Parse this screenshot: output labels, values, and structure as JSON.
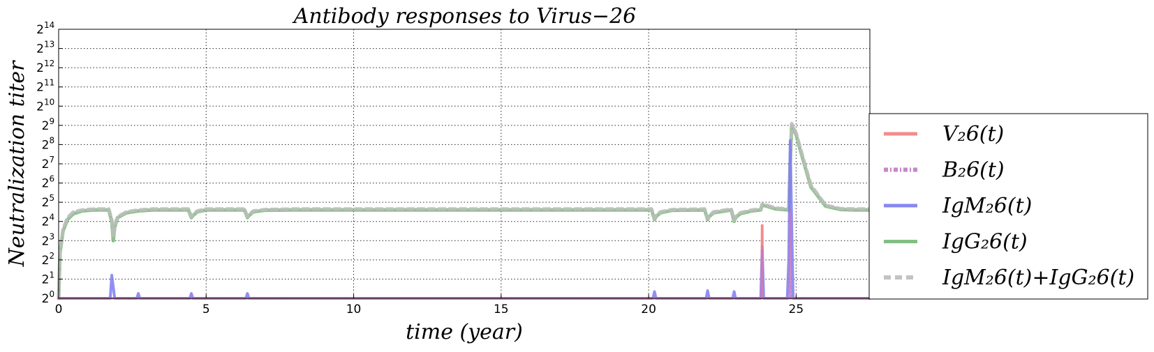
{
  "chart_data": {
    "type": "line",
    "title": "Antibody responses to Virus−26",
    "xlabel": "time (year)",
    "ylabel": "Neutralization  titer",
    "xlim": [
      0,
      27.5
    ],
    "x_ticks": [
      0,
      5,
      10,
      15,
      20,
      25
    ],
    "ylim_log2": [
      0,
      14
    ],
    "y_scale": "log2",
    "y_tick_base": "2",
    "y_ticks_exp": [
      0,
      1,
      2,
      3,
      4,
      5,
      6,
      7,
      8,
      9,
      10,
      11,
      12,
      13,
      14
    ],
    "grid": true,
    "legend_position": "right, outside plot",
    "legend": [
      {
        "label": "V₂6(t)",
        "color": "#f08080",
        "style": "solid"
      },
      {
        "label": "B₂6(t)",
        "color": "#c27bc4",
        "style": "dash-dot"
      },
      {
        "label": "IgM₂6(t)",
        "color": "#7b7bf0",
        "style": "solid"
      },
      {
        "label": "IgG₂6(t)",
        "color": "#76b876",
        "style": "solid"
      },
      {
        "label": "IgM₂6(t)+IgG₂6(t)",
        "color": "#bdbdbd",
        "style": "dashed"
      }
    ],
    "series": [
      {
        "name": "IgG₂6(t)",
        "color": "#76b876",
        "x": [
          0,
          0.05,
          0.15,
          0.3,
          0.5,
          0.8,
          1.2,
          1.7,
          1.8,
          1.85,
          1.9,
          2.0,
          2.3,
          2.7,
          3.2,
          4.4,
          4.5,
          4.55,
          4.7,
          5.0,
          6.3,
          6.4,
          6.45,
          6.6,
          7.0,
          8.0,
          20.1,
          20.2,
          20.25,
          20.4,
          20.8,
          21.9,
          22.0,
          22.05,
          22.2,
          22.6,
          22.8,
          22.9,
          22.95,
          23.1,
          23.5,
          23.8,
          23.85,
          24.0,
          24.3,
          24.75,
          24.8,
          24.85,
          25.0,
          25.2,
          25.5,
          26.0,
          26.5,
          27.0,
          27.5
        ],
        "y_log2": [
          0,
          2.4,
          3.5,
          4.1,
          4.4,
          4.55,
          4.6,
          4.6,
          4.0,
          3.0,
          3.7,
          4.2,
          4.45,
          4.55,
          4.6,
          4.6,
          4.2,
          4.3,
          4.5,
          4.6,
          4.6,
          4.2,
          4.3,
          4.5,
          4.58,
          4.6,
          4.6,
          4.1,
          4.25,
          4.45,
          4.58,
          4.6,
          4.1,
          4.25,
          4.45,
          4.55,
          4.6,
          4.0,
          4.2,
          4.4,
          4.55,
          4.6,
          4.85,
          4.8,
          4.65,
          4.6,
          7.0,
          9.0,
          8.5,
          7.4,
          5.8,
          4.8,
          4.62,
          4.6,
          4.6
        ]
      },
      {
        "name": "IgM₂6(t)+IgG₂6(t)",
        "color": "#bdbdbd",
        "x": [
          0,
          0.05,
          0.15,
          0.3,
          0.5,
          0.8,
          1.2,
          1.7,
          1.8,
          1.85,
          1.9,
          2.0,
          2.3,
          2.7,
          3.2,
          4.4,
          4.5,
          4.55,
          4.7,
          5.0,
          6.3,
          6.4,
          6.45,
          6.6,
          7.0,
          8.0,
          20.1,
          20.2,
          20.25,
          20.4,
          20.8,
          21.9,
          22.0,
          22.05,
          22.2,
          22.6,
          22.8,
          22.9,
          22.95,
          23.1,
          23.5,
          23.8,
          23.85,
          24.0,
          24.3,
          24.75,
          24.8,
          24.85,
          25.0,
          25.2,
          25.5,
          26.0,
          26.5,
          27.0,
          27.5
        ],
        "y_log2": [
          0,
          2.5,
          3.6,
          4.2,
          4.5,
          4.6,
          4.65,
          4.65,
          4.1,
          3.2,
          3.8,
          4.25,
          4.5,
          4.6,
          4.65,
          4.65,
          4.25,
          4.35,
          4.55,
          4.65,
          4.65,
          4.25,
          4.35,
          4.55,
          4.62,
          4.65,
          4.65,
          4.15,
          4.3,
          4.5,
          4.62,
          4.65,
          4.15,
          4.3,
          4.5,
          4.6,
          4.65,
          4.05,
          4.25,
          4.45,
          4.6,
          4.65,
          4.9,
          4.85,
          4.7,
          4.65,
          7.2,
          9.1,
          8.6,
          7.5,
          5.9,
          4.85,
          4.67,
          4.65,
          4.65
        ]
      },
      {
        "name": "IgM₂6(t)",
        "color": "#7b7bf0",
        "x": [
          0,
          1.75,
          1.8,
          1.85,
          1.9,
          2.65,
          2.7,
          2.75,
          4.45,
          4.5,
          4.55,
          6.35,
          6.4,
          6.45,
          20.15,
          20.2,
          20.25,
          21.95,
          22.0,
          22.05,
          22.85,
          22.9,
          22.95,
          23.8,
          23.85,
          23.9,
          24.7,
          24.75,
          24.8,
          24.85,
          24.9,
          27.5
        ],
        "y_log2": [
          0,
          0,
          1.2,
          0.6,
          0,
          0,
          0.25,
          0,
          0,
          0.25,
          0,
          0,
          0.25,
          0,
          0,
          0.35,
          0,
          0,
          0.4,
          0,
          0,
          0.35,
          0,
          0,
          2.7,
          0,
          0,
          2.0,
          8.2,
          4.0,
          0,
          0
        ]
      },
      {
        "name": "V₂6(t)",
        "color": "#f08080",
        "x": [
          0,
          23.83,
          23.84,
          23.86,
          23.87,
          27.5
        ],
        "y_log2": [
          0,
          0,
          3.8,
          3.8,
          0,
          0
        ]
      },
      {
        "name": "B₂6(t)",
        "color": "#c27bc4",
        "x": [
          0,
          23.83,
          23.84,
          23.86,
          23.87,
          24.78,
          24.79,
          24.81,
          24.82,
          27.5
        ],
        "y_log2": [
          0,
          0,
          2.5,
          2.5,
          0,
          0,
          4.5,
          4.5,
          0,
          0
        ]
      }
    ]
  }
}
